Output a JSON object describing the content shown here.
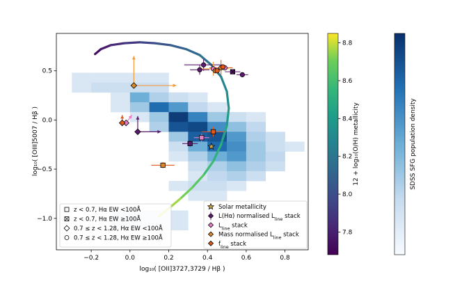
{
  "chart_data": {
    "type": "scatter",
    "xlabel": "log₁₀( [OII]3727,3729 / Hβ )",
    "ylabel": "log₁₀( [OIII]5007 / Hβ )",
    "xlim": [
      -0.38,
      0.92
    ],
    "ylim": [
      -1.32,
      0.88
    ],
    "xticks": [
      "−0.2",
      "0.0",
      "0.2",
      "0.4",
      "0.6",
      "0.8"
    ],
    "xtick_values": [
      -0.2,
      0.0,
      0.2,
      0.4,
      0.6,
      0.8
    ],
    "yticks": [
      "0.5",
      "0.0",
      "−0.5",
      "−1.0"
    ],
    "ytick_values": [
      0.5,
      0.0,
      -0.5,
      -1.0
    ],
    "colorbar_metallicity": {
      "label": "12 + log₁₀(O/H) metallicity",
      "range": [
        7.68,
        8.85
      ],
      "ticks": [
        "7.8",
        "8.0",
        "8.2",
        "8.4",
        "8.6",
        "8.8"
      ],
      "tick_values": [
        7.8,
        8.0,
        8.2,
        8.4,
        8.6,
        8.8
      ]
    },
    "colorbar_density": {
      "label": "SDSS SFG population density"
    },
    "density_grid": {
      "x0": -0.3,
      "dx": 0.1,
      "y0": -1.12,
      "dy": 0.1,
      "rows": [
        [
          0.08,
          0.08,
          0.08,
          0.08,
          0.08,
          0.0,
          0.0,
          0.0,
          0.0,
          0.0,
          0.0,
          0.0
        ],
        [
          0.08,
          0.15,
          0.15,
          0.15,
          0.15,
          0.0,
          0.0,
          0.0,
          0.0,
          0.0,
          0.0,
          0.0
        ],
        [
          0.0,
          0.0,
          0.08,
          0.45,
          0.25,
          0.15,
          0.08,
          0.0,
          0.0,
          0.0,
          0.0,
          0.0
        ],
        [
          0.0,
          0.0,
          0.08,
          0.3,
          0.75,
          0.55,
          0.2,
          0.08,
          0.0,
          0.0,
          0.0,
          0.0
        ],
        [
          0.0,
          0.0,
          0.0,
          0.08,
          0.3,
          0.95,
          0.65,
          0.3,
          0.15,
          0.08,
          0.0,
          0.0
        ],
        [
          0.0,
          0.0,
          0.0,
          0.0,
          0.25,
          0.85,
          0.9,
          0.6,
          0.35,
          0.2,
          0.0,
          0.0
        ],
        [
          0.0,
          0.0,
          0.0,
          0.0,
          0.0,
          0.3,
          0.8,
          0.85,
          0.55,
          0.25,
          0.15,
          0.0
        ],
        [
          0.0,
          0.0,
          0.0,
          0.0,
          0.0,
          0.15,
          0.45,
          0.75,
          0.6,
          0.3,
          0.15,
          0.08
        ],
        [
          0.0,
          0.0,
          0.0,
          0.0,
          0.0,
          0.08,
          0.25,
          0.45,
          0.55,
          0.3,
          0.2,
          0.0
        ],
        [
          0.0,
          0.0,
          0.0,
          0.0,
          0.0,
          0.0,
          0.15,
          0.25,
          0.35,
          0.25,
          0.15,
          0.0
        ],
        [
          0.0,
          0.0,
          0.0,
          0.0,
          0.0,
          0.0,
          0.08,
          0.2,
          0.25,
          0.15,
          0.0,
          0.0
        ],
        [
          0.0,
          0.0,
          0.0,
          0.0,
          0.0,
          0.08,
          0.15,
          0.15,
          0.08,
          0.0,
          0.0,
          0.0
        ],
        [
          0.0,
          0.0,
          0.0,
          0.0,
          0.0,
          0.0,
          0.08,
          0.08,
          0.0,
          0.0,
          0.0,
          0.0
        ],
        [
          0.0,
          0.0,
          0.0,
          0.0,
          0.0,
          0.0,
          0.0,
          0.0,
          0.0,
          0.0,
          0.0,
          0.0
        ],
        [
          0.0,
          0.0,
          0.08,
          0.08,
          0.08,
          0.08,
          0.0,
          0.0,
          0.0,
          0.0,
          0.0,
          0.0
        ],
        [
          0.0,
          0.0,
          0.08,
          0.08,
          0.08,
          0.08,
          0.0,
          0.0,
          0.0,
          0.0,
          0.0,
          0.0
        ]
      ]
    },
    "metallicity_track": {
      "x": [
        -0.18,
        -0.15,
        -0.1,
        -0.03,
        0.05,
        0.13,
        0.21,
        0.29,
        0.36,
        0.42,
        0.47,
        0.5,
        0.51,
        0.5,
        0.47,
        0.43,
        0.38,
        0.32,
        0.26,
        0.2,
        0.15
      ],
      "y": [
        0.67,
        0.72,
        0.76,
        0.78,
        0.79,
        0.78,
        0.76,
        0.72,
        0.66,
        0.56,
        0.44,
        0.29,
        0.12,
        -0.06,
        -0.25,
        -0.42,
        -0.56,
        -0.69,
        -0.8,
        -0.9,
        -0.98
      ],
      "metallicity": [
        7.7,
        7.75,
        7.8,
        7.87,
        7.93,
        8.0,
        8.05,
        8.1,
        8.15,
        8.2,
        8.25,
        8.3,
        8.36,
        8.42,
        8.48,
        8.55,
        8.62,
        8.68,
        8.73,
        8.78,
        8.83
      ]
    },
    "series": [
      {
        "name": "L(Hα) normalised Lₗᵢₙₑ stack",
        "marker": "thin-diamond",
        "color": "#5c1a6e",
        "points": [
          {
            "x": 0.04,
            "y": -0.12,
            "sym": "diamond"
          },
          {
            "x": 0.38,
            "y": 0.56,
            "sym": "circle"
          },
          {
            "x": 0.36,
            "y": 0.51,
            "sym": "ring"
          },
          {
            "x": 0.31,
            "y": -0.24,
            "sym": "square"
          },
          {
            "x": 0.53,
            "y": 0.49,
            "sym": "xsquare"
          },
          {
            "x": 0.58,
            "y": 0.46,
            "sym": "circle"
          }
        ]
      },
      {
        "name": "Lₗᵢₙₑ stack",
        "marker": "diamond",
        "color": "#e87ec6",
        "points": [
          {
            "x": -0.02,
            "y": -0.03,
            "sym": "diamond"
          },
          {
            "x": 0.37,
            "y": -0.18,
            "sym": "square"
          },
          {
            "x": 0.43,
            "y": 0.52,
            "sym": "ring"
          },
          {
            "x": 0.49,
            "y": 0.53,
            "sym": "circle"
          }
        ]
      },
      {
        "name": "Mass normalised Lₗᵢₙₑ stack",
        "marker": "diamond",
        "color": "#d8892e",
        "points": [
          {
            "x": 0.02,
            "y": 0.35,
            "sym": "diamond"
          },
          {
            "x": 0.17,
            "y": -0.46,
            "sym": "square"
          },
          {
            "x": 0.47,
            "y": 0.53,
            "sym": "circle"
          },
          {
            "x": 0.44,
            "y": 0.5,
            "sym": "ring"
          }
        ]
      },
      {
        "name": "fₗᵢₙₑ stack",
        "marker": "diamond",
        "color": "#e05a1c",
        "points": [
          {
            "x": -0.04,
            "y": -0.03,
            "sym": "diamond"
          },
          {
            "x": 0.43,
            "y": -0.12,
            "sym": "square"
          },
          {
            "x": 0.48,
            "y": 0.54,
            "sym": "circle"
          },
          {
            "x": 0.45,
            "y": 0.5,
            "sym": "ring"
          }
        ]
      },
      {
        "name": "Solar metallicity",
        "marker": "star",
        "color": "#c8a54a",
        "points": [
          {
            "x": 0.42,
            "y": -0.27,
            "sym": "star"
          }
        ]
      }
    ],
    "arrows": [
      {
        "x": 0.02,
        "y": 0.35,
        "dx": 0.0,
        "dy": 0.3,
        "color": "#f59a3a"
      },
      {
        "x": 0.02,
        "y": 0.35,
        "dx": 0.22,
        "dy": 0.0,
        "color": "#f59a3a"
      },
      {
        "x": 0.04,
        "y": -0.12,
        "dx": 0.0,
        "dy": 0.16,
        "color": "#5c1a6e"
      },
      {
        "x": 0.04,
        "y": -0.12,
        "dx": 0.12,
        "dy": 0.0,
        "color": "#5c1a6e"
      },
      {
        "x": -0.02,
        "y": -0.03,
        "dx": 0.03,
        "dy": 0.08,
        "color": "#e87ec6"
      },
      {
        "x": -0.04,
        "y": -0.03,
        "dx": 0.0,
        "dy": 0.08,
        "color": "#e05a1c"
      }
    ],
    "errorbars": [
      {
        "x": 0.38,
        "y": 0.56,
        "xerr": 0.1,
        "yerr": 0.06,
        "color": "#5c1a6e"
      },
      {
        "x": 0.36,
        "y": 0.51,
        "xerr": 0.05,
        "yerr": 0.05,
        "color": "#5c1a6e"
      },
      {
        "x": 0.43,
        "y": 0.52,
        "xerr": 0.08,
        "yerr": 0.07,
        "color": "#f59a3a"
      },
      {
        "x": 0.47,
        "y": 0.53,
        "xerr": 0.06,
        "yerr": 0.08,
        "color": "#e05a1c"
      },
      {
        "x": 0.31,
        "y": -0.24,
        "xerr": 0.04,
        "yerr": 0.03,
        "color": "#5c1a6e"
      },
      {
        "x": 0.43,
        "y": -0.12,
        "xerr": 0.06,
        "yerr": 0.05,
        "color": "#e05a1c"
      },
      {
        "x": 0.37,
        "y": -0.18,
        "xerr": 0.04,
        "yerr": 0.04,
        "color": "#e87ec6"
      },
      {
        "x": 0.17,
        "y": -0.46,
        "xerr": 0.06,
        "yerr": 0.03,
        "color": "#e05a1c"
      },
      {
        "x": 0.53,
        "y": 0.49,
        "xerr": 0.04,
        "yerr": 0.02,
        "color": "#5c1a6e"
      },
      {
        "x": 0.58,
        "y": 0.46,
        "xerr": 0.03,
        "yerr": 0.02,
        "color": "#5c1a6e"
      }
    ],
    "legend_symbols": [
      {
        "label": "z < 0.7, Hα EW <100Å",
        "sym": "square"
      },
      {
        "label": "z < 0.7, Hα EW ≥100Å",
        "sym": "xsquare"
      },
      {
        "label": "0.7 ≤ z < 1.28, Hα EW <100Å",
        "sym": "diamond"
      },
      {
        "label": "0.7 ≤ z < 1.28, Hα EW ≥100Å",
        "sym": "circle"
      }
    ],
    "legend_stacks": [
      {
        "label": "Solar metallicity",
        "marker": "star",
        "color": "#c8a54a"
      },
      {
        "label": "L(Hα) normalised L",
        "sub": "line",
        "tail": " stack",
        "marker": "thin-diamond",
        "color": "#5c1a6e"
      },
      {
        "label": "L",
        "sub": "line",
        "tail": " stack",
        "marker": "diamond",
        "color": "#e87ec6"
      },
      {
        "label": "Mass normalised L",
        "sub": "line",
        "tail": " stack",
        "marker": "diamond",
        "color": "#d8892e"
      },
      {
        "label": "f",
        "sub": "line",
        "tail": " stack",
        "marker": "diamond",
        "color": "#e05a1c"
      }
    ]
  }
}
